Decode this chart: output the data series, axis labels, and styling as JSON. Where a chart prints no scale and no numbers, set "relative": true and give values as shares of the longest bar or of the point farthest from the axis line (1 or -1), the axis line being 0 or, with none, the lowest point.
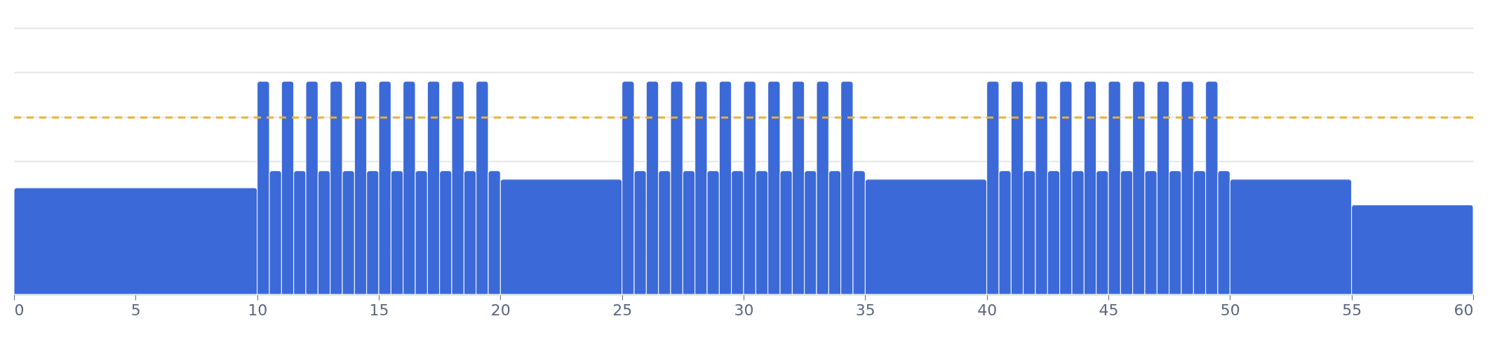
{
  "chart_data": {
    "type": "bar",
    "relative": true,
    "color": "#3b69d8",
    "x": [
      5,
      10.25,
      10.75,
      11.25,
      11.75,
      12.25,
      12.75,
      13.25,
      13.75,
      14.25,
      14.75,
      15.25,
      15.75,
      16.25,
      16.75,
      17.25,
      17.75,
      18.25,
      18.75,
      19.25,
      19.75,
      22.5,
      25.25,
      25.75,
      26.25,
      26.75,
      27.25,
      27.75,
      28.25,
      28.75,
      29.25,
      29.75,
      30.25,
      30.75,
      31.25,
      31.75,
      32.25,
      32.75,
      33.25,
      33.75,
      34.25,
      34.75,
      37.5,
      40.25,
      40.75,
      41.25,
      41.75,
      42.25,
      42.75,
      43.25,
      43.75,
      44.25,
      44.75,
      45.25,
      45.75,
      46.25,
      46.75,
      47.25,
      47.75,
      48.25,
      48.75,
      49.25,
      49.75,
      52.5,
      57.5
    ],
    "values": [
      0.5,
      1,
      0.58,
      1,
      0.58,
      1,
      0.58,
      1,
      0.58,
      1,
      0.58,
      1,
      0.58,
      1,
      0.58,
      1,
      0.58,
      1,
      0.58,
      1,
      0.58,
      0.54,
      1,
      0.58,
      1,
      0.58,
      1,
      0.58,
      1,
      0.58,
      1,
      0.58,
      1,
      0.58,
      1,
      0.58,
      1,
      0.58,
      1,
      0.58,
      1,
      0.58,
      0.54,
      1,
      0.58,
      1,
      0.58,
      1,
      0.58,
      1,
      0.58,
      1,
      0.58,
      1,
      0.58,
      1,
      0.58,
      1,
      0.58,
      1,
      0.58,
      1,
      0.58,
      0.54,
      0.42
    ],
    "xlim": [
      0,
      60
    ],
    "xticks": [
      0,
      5,
      10,
      15,
      20,
      25,
      30,
      35,
      40,
      45,
      50,
      55,
      60
    ],
    "grid": "y",
    "ref_lines": [
      {
        "axis": "y",
        "value": 0.83,
        "color": "#e6b33a",
        "line_style": "dashed"
      }
    ]
  }
}
